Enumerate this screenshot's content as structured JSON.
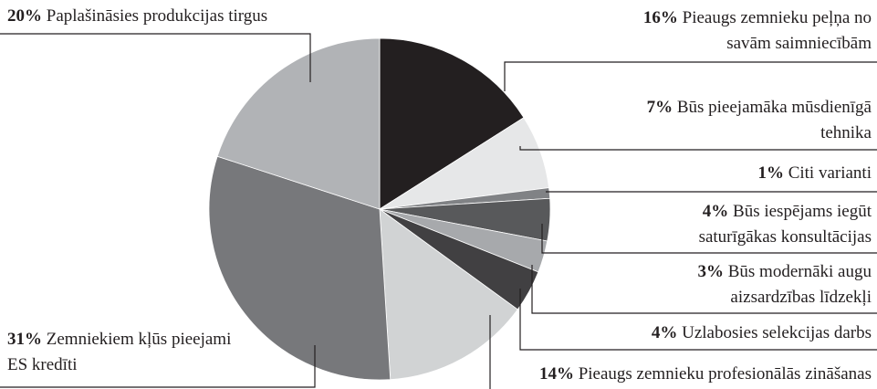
{
  "chart_data": {
    "type": "pie",
    "categories": [
      "Pieaugs zemnieku peļņa no savām saimniecībām",
      "Būs pieejamāka mūsdienīgā tehnika",
      "Citi varianti",
      "Būs iespējams iegūt saturīgākas konsultācijas",
      "Būs modernāki augu aizsardzības līdzekļi",
      "Uzlabosies selekcijas darbs",
      "Pieaugs zemnieku profesionālās zināšanas",
      "Zemniekiem kļūs pieejami ES kredīti",
      "Paplašināsies produkcijas tirgus"
    ],
    "values": [
      16,
      7,
      1,
      4,
      3,
      4,
      14,
      31,
      20
    ],
    "value_labels": [
      "16%",
      "7%",
      "1%",
      "4%",
      "3%",
      "4%",
      "14%",
      "31%",
      "20%"
    ],
    "colors": [
      "#231f20",
      "#e6e7e8",
      "#808285",
      "#58595b",
      "#a7a9ac",
      "#414042",
      "#d1d3d4",
      "#77787b",
      "#b1b3b6"
    ]
  }
}
